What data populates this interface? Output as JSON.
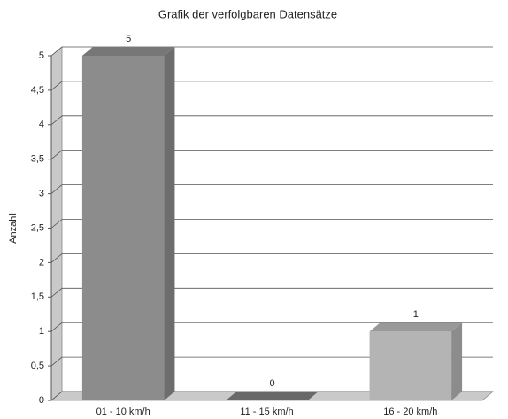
{
  "chart_data": {
    "type": "bar3d",
    "title": "Grafik der verfolgbaren Datensätze",
    "y_label": "Anzahl",
    "categories": [
      "01 - 10 km/h",
      "11 - 15 km/h",
      "16 - 20 km/h"
    ],
    "values": [
      5,
      0,
      1
    ],
    "colors": [
      "#8c8c8c",
      "#7a7a7a",
      "#b4b4b4"
    ],
    "ylim": [
      0,
      5
    ],
    "yticks": [
      0,
      {
        "value": 0.5,
        "label": "0,5"
      },
      1,
      {
        "value": 1.5,
        "label": "1,5"
      },
      2,
      {
        "value": 2.5,
        "label": "2,5"
      },
      3,
      {
        "value": 3.5,
        "label": "3,5"
      },
      4,
      {
        "value": 4.5,
        "label": "4,5"
      },
      5
    ],
    "grid": true
  }
}
